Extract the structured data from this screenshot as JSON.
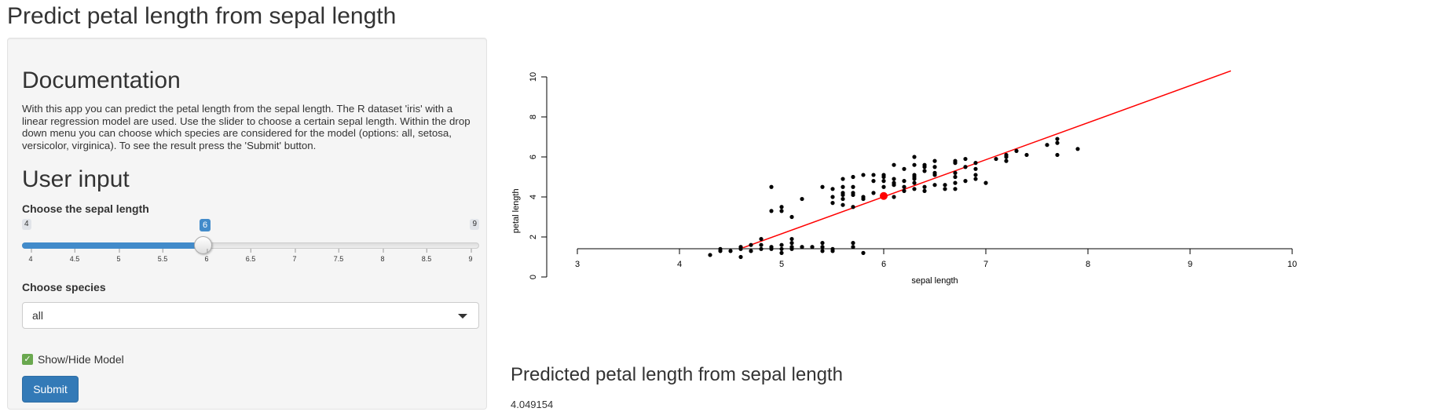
{
  "page": {
    "title": "Predict petal length from sepal length"
  },
  "sidebar": {
    "documentation": {
      "title": "Documentation",
      "text": "With this app you can predict the petal length from the sepal length. The R dataset 'iris' with a linear regression model are used. Use the slider to choose a certain sepal length. Within the drop down menu you can choose which species are considered for the model (options: all, setosa, versicolor, virginica). To see the result press the 'Submit' button."
    },
    "user_input": {
      "title": "User input",
      "sepal_label": "Choose the sepal length",
      "slider": {
        "min": "4",
        "max": "9",
        "value": "6",
        "ticks": [
          "4",
          "4.5",
          "5",
          "5.5",
          "6",
          "6.5",
          "7",
          "7.5",
          "8",
          "8.5",
          "9"
        ],
        "fill_color": "#428bca"
      },
      "species_label": "Choose species",
      "species_selected": "all",
      "checkbox_label": "Show/Hide Model",
      "checkbox_checked": true,
      "submit_label": "Submit"
    }
  },
  "result": {
    "title": "Predicted petal length from sepal length",
    "value": "4.049154"
  },
  "chart_data": {
    "type": "scatter",
    "xlabel": "sepal length",
    "ylabel": "petal length",
    "xlim": [
      3,
      10
    ],
    "ylim": [
      0,
      10
    ],
    "xticks": [
      "3",
      "4",
      "5",
      "6",
      "7",
      "8",
      "9",
      "10"
    ],
    "yticks": [
      "0",
      "2",
      "4",
      "6",
      "8",
      "10"
    ],
    "point_color": "#000000",
    "line_color": "#ff0000",
    "regression_line": {
      "x": [
        3.6,
        9.4
      ],
      "y": [
        -0.43,
        10.3
      ]
    },
    "prediction": {
      "x": 6,
      "y": 4.049154
    },
    "points": [
      [
        4.3,
        1.1
      ],
      [
        4.4,
        1.3
      ],
      [
        4.4,
        1.4
      ],
      [
        4.5,
        1.3
      ],
      [
        4.6,
        1.0
      ],
      [
        4.6,
        1.4
      ],
      [
        4.6,
        1.5
      ],
      [
        4.7,
        1.3
      ],
      [
        4.7,
        1.6
      ],
      [
        4.8,
        1.4
      ],
      [
        4.8,
        1.6
      ],
      [
        4.8,
        1.9
      ],
      [
        4.9,
        1.4
      ],
      [
        4.9,
        1.5
      ],
      [
        4.9,
        3.3
      ],
      [
        4.9,
        4.5
      ],
      [
        5.0,
        1.2
      ],
      [
        5.0,
        1.4
      ],
      [
        5.0,
        1.6
      ],
      [
        5.0,
        3.3
      ],
      [
        5.0,
        3.5
      ],
      [
        5.1,
        1.4
      ],
      [
        5.1,
        1.5
      ],
      [
        5.1,
        1.7
      ],
      [
        5.1,
        1.9
      ],
      [
        5.1,
        3.0
      ],
      [
        5.2,
        1.5
      ],
      [
        5.2,
        3.9
      ],
      [
        5.3,
        1.5
      ],
      [
        5.4,
        1.3
      ],
      [
        5.4,
        1.5
      ],
      [
        5.4,
        1.7
      ],
      [
        5.4,
        4.5
      ],
      [
        5.5,
        1.3
      ],
      [
        5.5,
        1.4
      ],
      [
        5.5,
        3.7
      ],
      [
        5.5,
        4.0
      ],
      [
        5.5,
        4.4
      ],
      [
        5.6,
        3.6
      ],
      [
        5.6,
        3.9
      ],
      [
        5.6,
        4.1
      ],
      [
        5.6,
        4.2
      ],
      [
        5.6,
        4.5
      ],
      [
        5.6,
        4.9
      ],
      [
        5.7,
        1.5
      ],
      [
        5.7,
        1.7
      ],
      [
        5.7,
        3.5
      ],
      [
        5.7,
        4.1
      ],
      [
        5.7,
        4.2
      ],
      [
        5.7,
        4.5
      ],
      [
        5.7,
        5.0
      ],
      [
        5.8,
        1.2
      ],
      [
        5.8,
        3.9
      ],
      [
        5.8,
        4.0
      ],
      [
        5.8,
        5.1
      ],
      [
        5.9,
        4.2
      ],
      [
        5.9,
        4.8
      ],
      [
        5.9,
        5.1
      ],
      [
        6.0,
        4.0
      ],
      [
        6.0,
        4.5
      ],
      [
        6.0,
        4.8
      ],
      [
        6.0,
        5.0
      ],
      [
        6.0,
        5.1
      ],
      [
        6.1,
        4.0
      ],
      [
        6.1,
        4.6
      ],
      [
        6.1,
        4.7
      ],
      [
        6.1,
        4.9
      ],
      [
        6.1,
        5.6
      ],
      [
        6.2,
        4.3
      ],
      [
        6.2,
        4.5
      ],
      [
        6.2,
        4.8
      ],
      [
        6.2,
        5.4
      ],
      [
        6.3,
        4.4
      ],
      [
        6.3,
        4.7
      ],
      [
        6.3,
        4.9
      ],
      [
        6.3,
        5.0
      ],
      [
        6.3,
        5.1
      ],
      [
        6.3,
        5.6
      ],
      [
        6.3,
        6.0
      ],
      [
        6.4,
        4.3
      ],
      [
        6.4,
        4.5
      ],
      [
        6.4,
        5.3
      ],
      [
        6.4,
        5.5
      ],
      [
        6.4,
        5.6
      ],
      [
        6.5,
        4.6
      ],
      [
        6.5,
        5.1
      ],
      [
        6.5,
        5.2
      ],
      [
        6.5,
        5.5
      ],
      [
        6.5,
        5.8
      ],
      [
        6.6,
        4.4
      ],
      [
        6.6,
        4.6
      ],
      [
        6.7,
        4.4
      ],
      [
        6.7,
        4.7
      ],
      [
        6.7,
        5.0
      ],
      [
        6.7,
        5.2
      ],
      [
        6.7,
        5.7
      ],
      [
        6.7,
        5.8
      ],
      [
        6.8,
        4.8
      ],
      [
        6.8,
        5.5
      ],
      [
        6.8,
        5.9
      ],
      [
        6.9,
        4.9
      ],
      [
        6.9,
        5.1
      ],
      [
        6.9,
        5.4
      ],
      [
        6.9,
        5.7
      ],
      [
        7.0,
        4.7
      ],
      [
        7.1,
        5.9
      ],
      [
        7.2,
        5.8
      ],
      [
        7.2,
        6.0
      ],
      [
        7.2,
        6.1
      ],
      [
        7.3,
        6.3
      ],
      [
        7.4,
        6.1
      ],
      [
        7.6,
        6.6
      ],
      [
        7.7,
        6.1
      ],
      [
        7.7,
        6.7
      ],
      [
        7.7,
        6.9
      ],
      [
        7.9,
        6.4
      ]
    ]
  }
}
